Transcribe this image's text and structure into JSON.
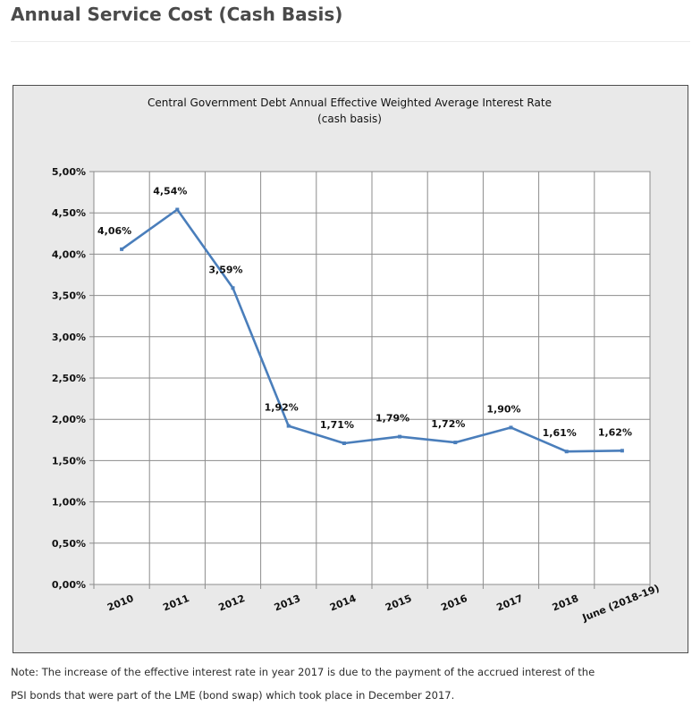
{
  "page": {
    "title": "Annual Service Cost (Cash Basis)",
    "note_line_1": "Note: The increase of the effective interest rate in year 2017 is due to the  payment of the accrued interest of the",
    "note_line_2": "PSI bonds that were part of the LME (bond swap) which took place in December 2017."
  },
  "chart_data": {
    "type": "line",
    "title": "Central Government Debt  Annual  Effective Weighted Average  Interest Rate",
    "subtitle": "(cash basis)",
    "xlabel": "",
    "ylabel": "",
    "categories": [
      "2010",
      "2011",
      "2012",
      "2013",
      "2014",
      "2015",
      "2016",
      "2017",
      "2018",
      "June (2018-19)"
    ],
    "series": [
      {
        "values": [
          4.06,
          4.54,
          3.59,
          1.92,
          1.71,
          1.79,
          1.72,
          1.9,
          1.61,
          1.62
        ],
        "data_labels": [
          "4,06%",
          "4,54%",
          "3,59%",
          "1,92%",
          "1,71%",
          "1,79%",
          "1,72%",
          "1,90%",
          "1,61%",
          "1,62%"
        ],
        "color": "#4a7ebb"
      }
    ],
    "ylim": [
      0,
      5
    ],
    "yticks": [
      "0,00%",
      "0,50%",
      "1,00%",
      "1,50%",
      "2,00%",
      "2,50%",
      "3,00%",
      "3,50%",
      "4,00%",
      "4,50%",
      "5,00%"
    ],
    "grid": true,
    "legend": "none",
    "plot_background": "#ffffff",
    "chart_background": "#e9e9e9"
  }
}
